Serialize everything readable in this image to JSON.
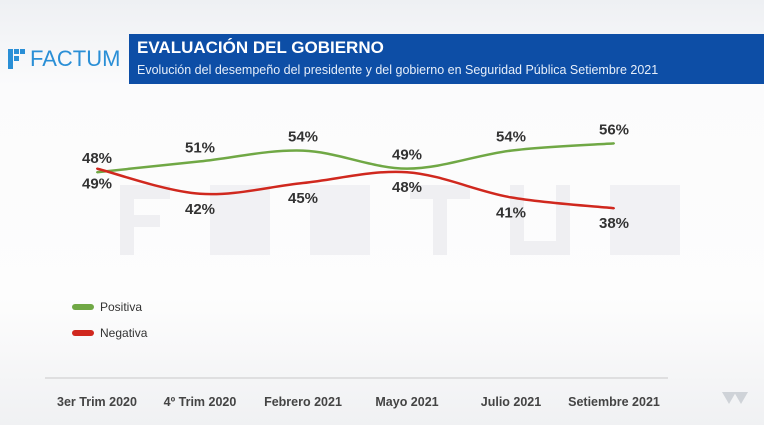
{
  "brand": {
    "name": "FACTUM",
    "color": "#2a8fd6"
  },
  "header": {
    "title": "EVALUACIÓN DEL GOBIERNO",
    "subtitle": "Evolución del desempeño del presidente y del gobierno en Seguridad Pública Setiembre 2021",
    "bg": "#0d4ea6"
  },
  "chart_data": {
    "type": "line",
    "title": "EVALUACIÓN DEL GOBIERNO",
    "categories": [
      "3er Trim 2020",
      "4º Trim 2020",
      "Febrero 2021",
      "Mayo 2021",
      "Julio 2021",
      "Setiembre 2021"
    ],
    "series": [
      {
        "name": "Positiva",
        "color": "#70a845",
        "values": [
          48,
          51,
          54,
          49,
          54,
          56
        ],
        "labels": [
          "48%",
          "51%",
          "54%",
          "49%",
          "54%",
          "56%"
        ]
      },
      {
        "name": "Negativa",
        "color": "#d0281e",
        "values": [
          49,
          42,
          45,
          48,
          41,
          38
        ],
        "labels": [
          "49%",
          "42%",
          "45%",
          "48%",
          "41%",
          "38%"
        ]
      }
    ],
    "legend": "bottom-left",
    "grid": false
  }
}
